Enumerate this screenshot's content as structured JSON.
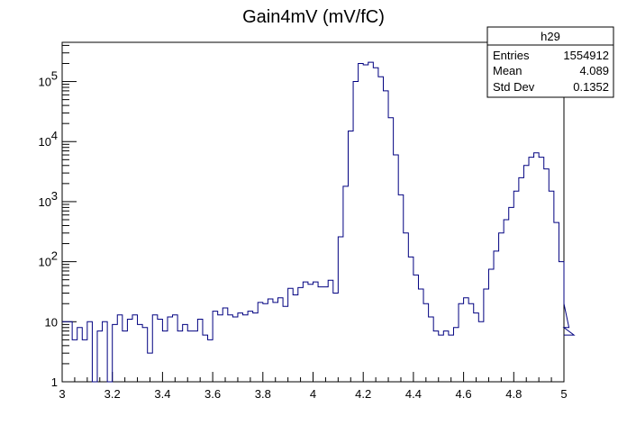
{
  "chart_data": {
    "type": "histogram",
    "title": "Gain4mV (mV/fC)",
    "xlabel": "",
    "ylabel": "",
    "xlim": [
      3,
      5
    ],
    "ylim": [
      1,
      450000
    ],
    "yscale": "log",
    "bin_width": 0.02,
    "grid": false,
    "line_color": "#000080",
    "x_ticks": [
      "3",
      "3.2",
      "3.4",
      "3.6",
      "3.8",
      "4",
      "4.2",
      "4.4",
      "4.6",
      "4.8",
      "5"
    ],
    "y_ticks": [
      {
        "value": 1,
        "base": "1",
        "exp": ""
      },
      {
        "value": 10,
        "base": "10",
        "exp": ""
      },
      {
        "value": 100,
        "base": "10",
        "exp": "2"
      },
      {
        "value": 1000,
        "base": "10",
        "exp": "3"
      },
      {
        "value": 10000,
        "base": "10",
        "exp": "4"
      },
      {
        "value": 100000,
        "base": "10",
        "exp": "5"
      }
    ],
    "values": [
      10,
      10,
      5,
      8,
      5,
      10,
      1,
      7,
      10,
      1,
      9,
      13,
      7,
      11,
      13,
      9,
      8,
      3,
      13,
      11,
      7,
      12,
      13,
      7,
      9,
      7,
      7,
      11,
      6,
      5,
      15,
      13,
      17,
      13,
      12,
      14,
      13,
      15,
      14,
      21,
      20,
      24,
      21,
      25,
      18,
      36,
      28,
      37,
      46,
      42,
      46,
      38,
      38,
      49,
      30,
      260,
      1800,
      15000,
      100000,
      200000,
      190000,
      210000,
      170000,
      120000,
      70000,
      25000,
      6000,
      1300,
      300,
      120,
      60,
      35,
      20,
      12,
      7,
      6,
      7,
      6,
      8,
      20,
      25,
      20,
      14,
      10,
      35,
      75,
      150,
      300,
      500,
      800,
      1500,
      2500,
      4000,
      5500,
      6500,
      5500,
      3500,
      1500,
      450,
      100,
      20,
      8,
      6
    ],
    "stats": {
      "name": "h29",
      "rows": [
        {
          "label": "Entries",
          "value": "1554912"
        },
        {
          "label": "Mean",
          "value": "4.089"
        },
        {
          "label": "Std Dev",
          "value": "0.1352"
        }
      ]
    }
  }
}
